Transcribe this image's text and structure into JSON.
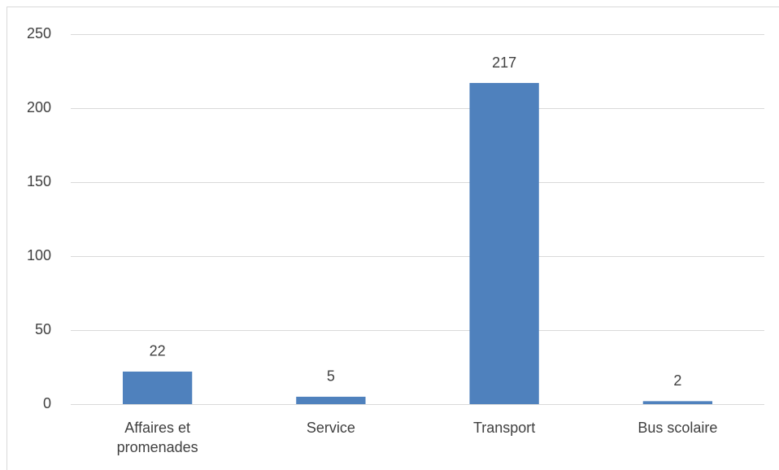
{
  "chart_data": {
    "type": "bar",
    "categories": [
      "Affaires et promenades",
      "Service",
      "Transport",
      "Bus scolaire"
    ],
    "values": [
      22,
      5,
      217,
      2
    ],
    "color": "#4f81bd",
    "ylim": [
      0,
      250
    ],
    "yticks": [
      0,
      50,
      100,
      150,
      200,
      250
    ],
    "grid": true
  }
}
